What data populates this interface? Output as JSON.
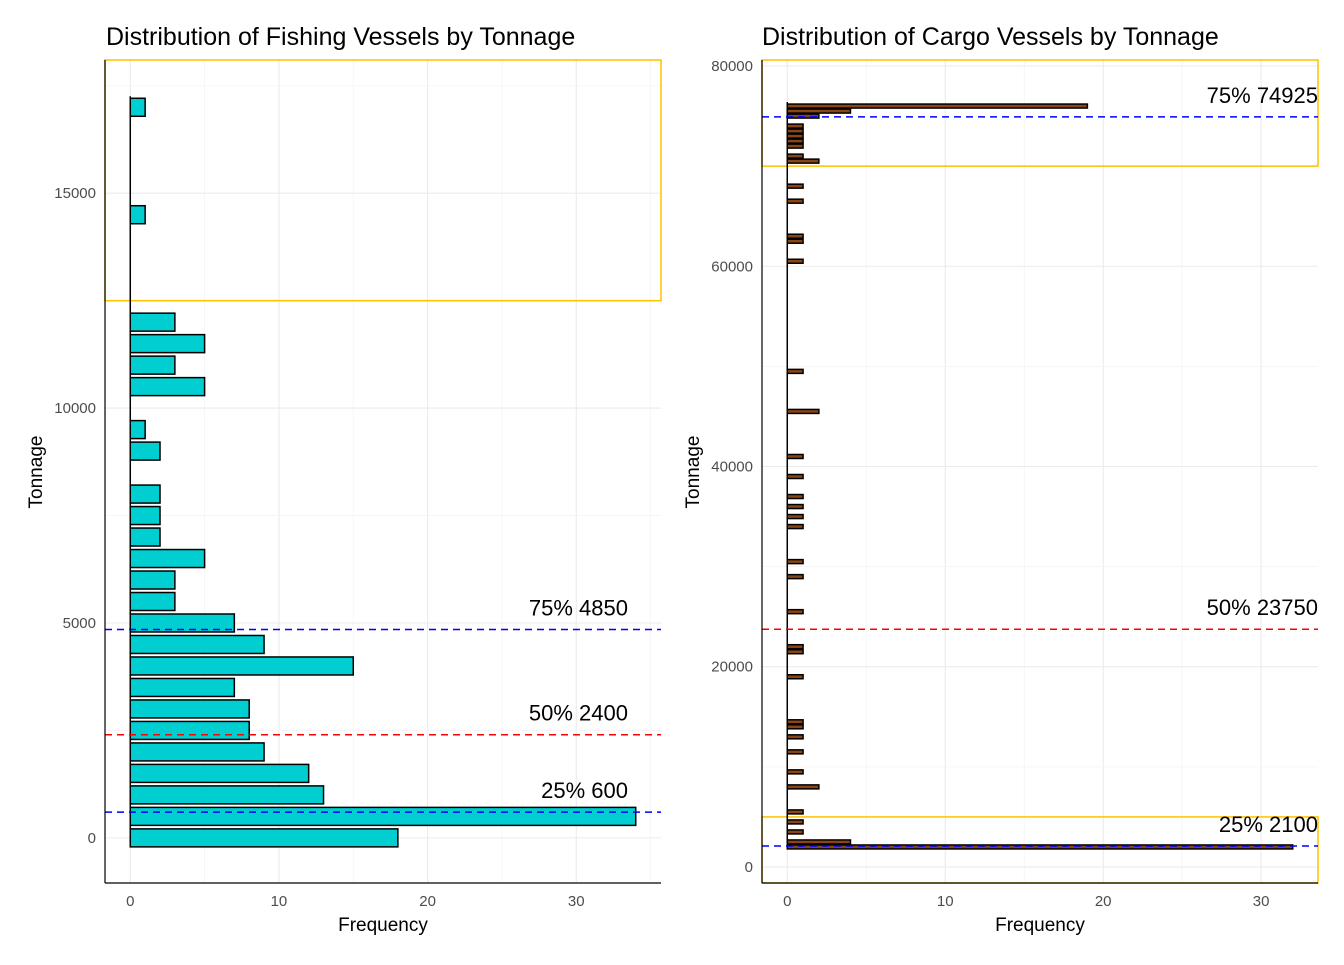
{
  "chart_data": [
    {
      "type": "bar",
      "orientation": "horizontal",
      "title": "Distribution of Fishing Vessels by Tonnage",
      "xlabel": "Frequency",
      "ylabel": "Tonnage",
      "xlim": [
        -1.7,
        35.7
      ],
      "ylim": [
        -1050,
        18100
      ],
      "xticks": [
        0,
        10,
        20,
        30
      ],
      "yticks": [
        0,
        5000,
        10000,
        15000
      ],
      "bin_width": 500,
      "bar_color": "#00CED1",
      "bar_border_color": "#000000",
      "highlight_color": "#FFC000",
      "highlight_range": [
        12500,
        18100
      ],
      "bins": [
        {
          "y": 0,
          "value": 18
        },
        {
          "y": 500,
          "value": 34
        },
        {
          "y": 1000,
          "value": 13
        },
        {
          "y": 1500,
          "value": 12
        },
        {
          "y": 2000,
          "value": 9
        },
        {
          "y": 2500,
          "value": 8
        },
        {
          "y": 3000,
          "value": 8
        },
        {
          "y": 3500,
          "value": 7
        },
        {
          "y": 4000,
          "value": 15
        },
        {
          "y": 4500,
          "value": 9
        },
        {
          "y": 5000,
          "value": 7
        },
        {
          "y": 5500,
          "value": 3
        },
        {
          "y": 6000,
          "value": 3
        },
        {
          "y": 6500,
          "value": 5
        },
        {
          "y": 7000,
          "value": 2
        },
        {
          "y": 7500,
          "value": 2
        },
        {
          "y": 8000,
          "value": 2
        },
        {
          "y": 8500,
          "value": 0
        },
        {
          "y": 9000,
          "value": 2
        },
        {
          "y": 9500,
          "value": 1
        },
        {
          "y": 10000,
          "value": 0
        },
        {
          "y": 10500,
          "value": 5
        },
        {
          "y": 11000,
          "value": 3
        },
        {
          "y": 11500,
          "value": 5
        },
        {
          "y": 12000,
          "value": 3
        },
        {
          "y": 14500,
          "value": 1
        },
        {
          "y": 17000,
          "value": 1
        }
      ],
      "quantiles": [
        {
          "label": "25% 600",
          "value": 600,
          "color": "#0000FF"
        },
        {
          "label": "50% 2400",
          "value": 2400,
          "color": "#FF0000"
        },
        {
          "label": "75% 4850",
          "value": 4850,
          "color": "#0000FF"
        }
      ]
    },
    {
      "type": "bar",
      "orientation": "horizontal",
      "title": "Distribution of Cargo Vessels by Tonnage",
      "xlabel": "Frequency",
      "ylabel": "Tonnage",
      "xlim": [
        -1.6,
        33.6
      ],
      "ylim": [
        -1600,
        80600
      ],
      "xticks": [
        0,
        10,
        20,
        30
      ],
      "yticks": [
        0,
        20000,
        40000,
        60000,
        80000
      ],
      "bin_width": 1000,
      "bar_color": "#8B4513",
      "bar_border_color": "#000000",
      "highlight_color": "#FFC000",
      "highlight_ranges": [
        [
          -1600,
          5000
        ],
        [
          70000,
          80600
        ]
      ],
      "bins": [
        {
          "y": 2000,
          "value": 32
        },
        {
          "y": 2500,
          "value": 4
        },
        {
          "y": 3500,
          "value": 1
        },
        {
          "y": 4500,
          "value": 1
        },
        {
          "y": 5500,
          "value": 1
        },
        {
          "y": 8000,
          "value": 2
        },
        {
          "y": 9500,
          "value": 1
        },
        {
          "y": 11500,
          "value": 1
        },
        {
          "y": 13000,
          "value": 1
        },
        {
          "y": 14000,
          "value": 1
        },
        {
          "y": 14500,
          "value": 1
        },
        {
          "y": 19000,
          "value": 1
        },
        {
          "y": 21500,
          "value": 1
        },
        {
          "y": 22000,
          "value": 1
        },
        {
          "y": 25500,
          "value": 1
        },
        {
          "y": 29000,
          "value": 1
        },
        {
          "y": 30500,
          "value": 1
        },
        {
          "y": 34000,
          "value": 1
        },
        {
          "y": 35000,
          "value": 1
        },
        {
          "y": 36000,
          "value": 1
        },
        {
          "y": 37000,
          "value": 1
        },
        {
          "y": 39000,
          "value": 1
        },
        {
          "y": 41000,
          "value": 1
        },
        {
          "y": 45500,
          "value": 2
        },
        {
          "y": 49500,
          "value": 1
        },
        {
          "y": 60500,
          "value": 1
        },
        {
          "y": 62500,
          "value": 1
        },
        {
          "y": 63000,
          "value": 1
        },
        {
          "y": 66500,
          "value": 1
        },
        {
          "y": 68000,
          "value": 1
        },
        {
          "y": 70500,
          "value": 2
        },
        {
          "y": 71000,
          "value": 1
        },
        {
          "y": 72000,
          "value": 1
        },
        {
          "y": 72500,
          "value": 1
        },
        {
          "y": 73000,
          "value": 1
        },
        {
          "y": 73500,
          "value": 1
        },
        {
          "y": 74000,
          "value": 1
        },
        {
          "y": 75000,
          "value": 2
        },
        {
          "y": 75500,
          "value": 4
        },
        {
          "y": 76000,
          "value": 19
        }
      ],
      "quantiles": [
        {
          "label": "25% 2100",
          "value": 2100,
          "color": "#0000FF"
        },
        {
          "label": "50% 23750",
          "value": 23750,
          "color": "#FF0000"
        },
        {
          "label": "75% 74925",
          "value": 74925,
          "color": "#0000FF"
        }
      ]
    }
  ]
}
